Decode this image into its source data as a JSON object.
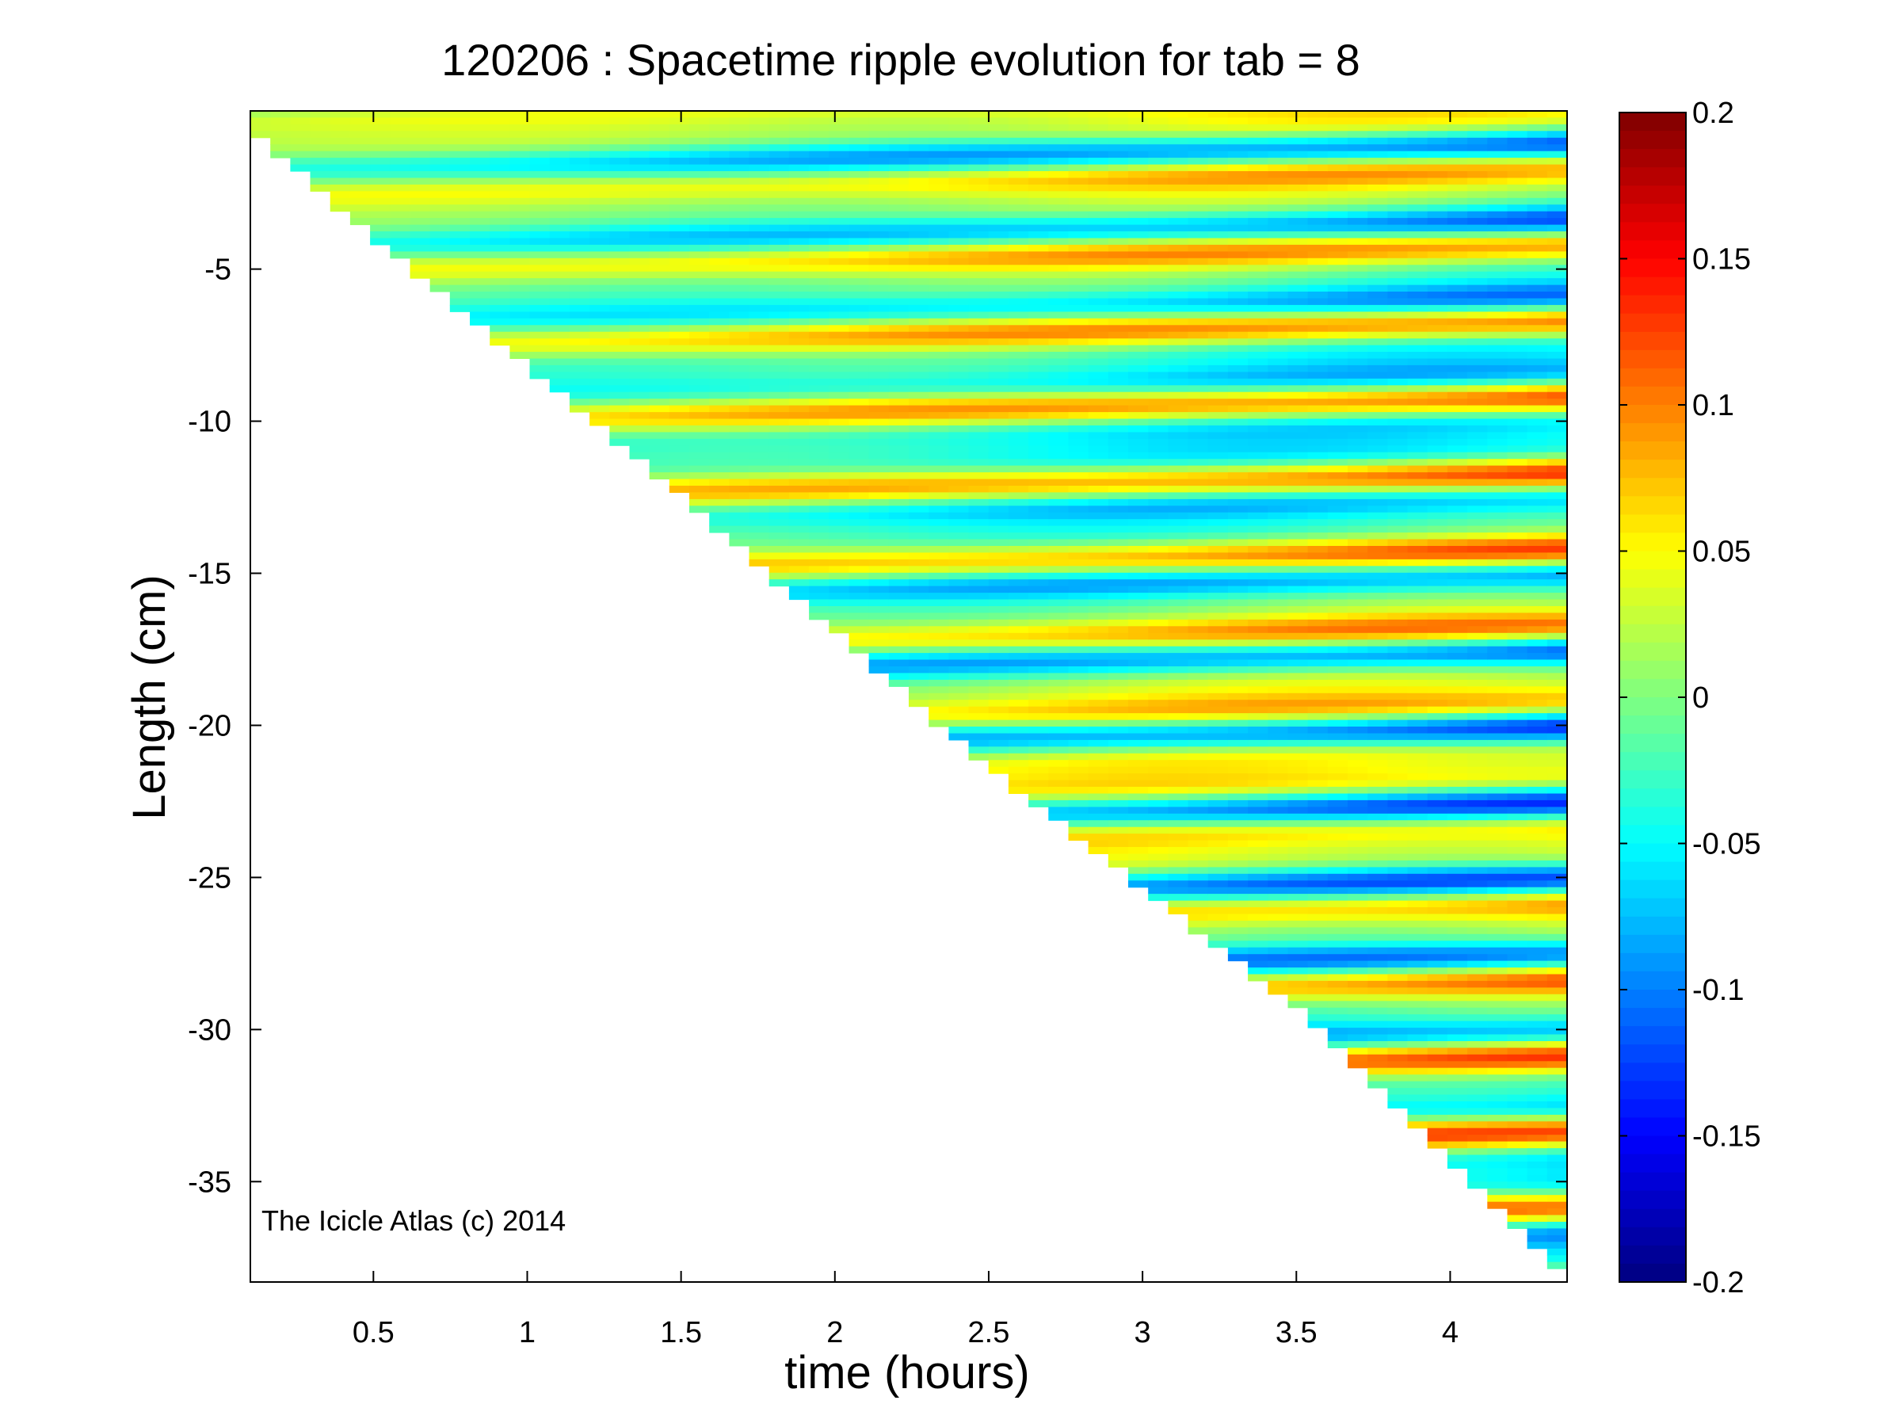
{
  "chart_data": {
    "type": "heatmap",
    "title": "120206 : Spacetime ripple evolution for tab = 8",
    "xlabel": "time (hours)",
    "ylabel": "Length (cm)",
    "xlim": [
      0.1,
      4.38
    ],
    "ylim": [
      -38.3,
      0.2
    ],
    "xticks": [
      0.5,
      1,
      1.5,
      2,
      2.5,
      3,
      3.5,
      4
    ],
    "xtick_labels": [
      "0.5",
      "1",
      "1.5",
      "2",
      "2.5",
      "3",
      "3.5",
      "4"
    ],
    "yticks": [
      -5,
      -10,
      -15,
      -20,
      -25,
      -30,
      -35
    ],
    "ytick_labels": [
      "-5",
      "-10",
      "-15",
      "-20",
      "-25",
      "-30",
      "-35"
    ],
    "colorbar": {
      "colormap": "jet",
      "range": [
        -0.2,
        0.2
      ],
      "ticks": [
        0.2,
        0.15,
        0.1,
        0.05,
        0,
        -0.05,
        -0.1,
        -0.15,
        -0.2
      ],
      "tick_labels": [
        "0.2",
        "0.15",
        "0.1",
        "0.05",
        "0",
        "-0.05",
        "-0.1",
        "-0.15",
        "-0.2"
      ]
    },
    "front_boundary": {
      "description_note": "data exists above the icicle tip line",
      "points": [
        [
          0.1,
          -0.6
        ],
        [
          1.5,
          -12.6
        ],
        [
          2.5,
          -21.5
        ],
        [
          3.5,
          -29.4
        ],
        [
          4.38,
          -38.3
        ]
      ]
    },
    "annotation": "The Icicle Atlas (c) 2014",
    "grid": false,
    "legend": "colorbar-right"
  }
}
